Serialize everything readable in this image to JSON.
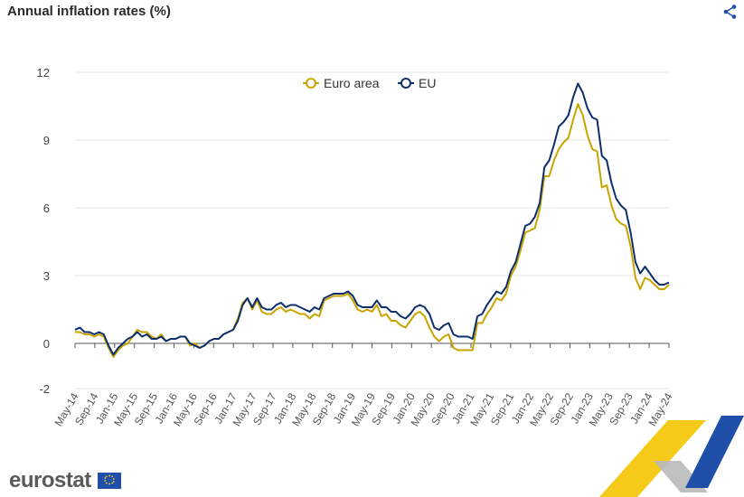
{
  "header": {
    "title": "Annual inflation rates (%)"
  },
  "footer": {
    "brand": "eurostat"
  },
  "chart_data": {
    "type": "line",
    "title": "Annual inflation rates (%)",
    "ylim": [
      -2,
      12
    ],
    "yticks": [
      -2,
      0,
      3,
      6,
      9,
      12
    ],
    "xlabels": [
      "May-14",
      "Sep-14",
      "Jan-15",
      "May-15",
      "Sep-15",
      "Jan-16",
      "May-16",
      "Sep-16",
      "Jan-17",
      "May-17",
      "Sep-17",
      "Jan-18",
      "May-18",
      "Sep-18",
      "Jan-19",
      "May-19",
      "Sep-19",
      "Jan-20",
      "May-20",
      "Sep-20",
      "Jan-21",
      "May-21",
      "Sep-21",
      "Jan-22",
      "May-22",
      "Sep-22",
      "Jan-23",
      "May-23",
      "Sep-23",
      "Jan-24",
      "May-24"
    ],
    "legend_position": "top-center",
    "series": [
      {
        "name": "Euro area",
        "color": "#c9a400",
        "values": [
          0.5,
          0.5,
          0.4,
          0.4,
          0.3,
          0.4,
          0.3,
          -0.2,
          -0.6,
          -0.3,
          -0.1,
          0.0,
          0.3,
          0.6,
          0.5,
          0.5,
          0.3,
          0.2,
          0.4,
          0.1,
          0.2,
          0.2,
          0.3,
          0.3,
          -0.1,
          0.0,
          -0.2,
          -0.1,
          0.1,
          0.2,
          0.2,
          0.4,
          0.5,
          0.6,
          1.1,
          1.8,
          2.0,
          1.5,
          1.9,
          1.4,
          1.3,
          1.3,
          1.5,
          1.6,
          1.4,
          1.5,
          1.4,
          1.3,
          1.3,
          1.1,
          1.3,
          1.2,
          1.9,
          2.0,
          2.1,
          2.1,
          2.1,
          2.2,
          1.9,
          1.5,
          1.4,
          1.5,
          1.4,
          1.7,
          1.2,
          1.3,
          1.0,
          1.0,
          0.8,
          0.7,
          1.0,
          1.3,
          1.4,
          1.2,
          0.7,
          0.3,
          0.1,
          0.3,
          0.4,
          -0.2,
          -0.3,
          -0.3,
          -0.3,
          -0.3,
          0.9,
          0.9,
          1.3,
          1.6,
          2.0,
          1.9,
          2.2,
          3.0,
          3.4,
          4.1,
          4.9,
          5.0,
          5.1,
          5.9,
          7.4,
          7.4,
          8.1,
          8.6,
          8.9,
          9.1,
          9.9,
          10.6,
          10.1,
          9.2,
          8.6,
          8.5,
          6.9,
          7.0,
          6.1,
          5.5,
          5.3,
          5.2,
          4.3,
          2.9,
          2.4,
          2.9,
          2.8,
          2.6,
          2.4,
          2.4,
          2.6
        ],
        "label_x": [
          "May-14",
          "Sep-14",
          "Jan-15",
          "May-15",
          "Sep-15",
          "Jan-16",
          "May-16",
          "Sep-16",
          "Jan-17",
          "May-17",
          "Sep-17",
          "Jan-18",
          "May-18",
          "Sep-18",
          "Jan-19",
          "May-19",
          "Sep-19",
          "Jan-20",
          "May-20",
          "Sep-20",
          "Jan-21",
          "May-21",
          "Sep-21",
          "Jan-22",
          "May-22",
          "Sep-22",
          "Jan-23",
          "May-23",
          "Sep-23",
          "Jan-24",
          "May-24"
        ]
      },
      {
        "name": "EU",
        "color": "#0e2f6e",
        "values": [
          0.6,
          0.7,
          0.5,
          0.5,
          0.4,
          0.5,
          0.4,
          -0.1,
          -0.5,
          -0.2,
          0.0,
          0.2,
          0.3,
          0.5,
          0.3,
          0.4,
          0.2,
          0.2,
          0.3,
          0.1,
          0.2,
          0.2,
          0.3,
          0.3,
          0.0,
          -0.1,
          -0.2,
          -0.1,
          0.1,
          0.2,
          0.2,
          0.4,
          0.5,
          0.6,
          1.0,
          1.7,
          2.0,
          1.6,
          2.0,
          1.6,
          1.5,
          1.5,
          1.7,
          1.8,
          1.6,
          1.7,
          1.7,
          1.6,
          1.5,
          1.4,
          1.6,
          1.5,
          2.0,
          2.1,
          2.2,
          2.2,
          2.2,
          2.3,
          2.1,
          1.7,
          1.6,
          1.6,
          1.6,
          1.9,
          1.6,
          1.6,
          1.4,
          1.4,
          1.2,
          1.1,
          1.3,
          1.6,
          1.7,
          1.6,
          1.3,
          0.7,
          0.6,
          0.8,
          0.9,
          0.4,
          0.3,
          0.3,
          0.3,
          0.2,
          1.2,
          1.3,
          1.7,
          2.0,
          2.3,
          2.2,
          2.5,
          3.2,
          3.6,
          4.4,
          5.2,
          5.3,
          5.6,
          6.2,
          7.8,
          8.1,
          8.8,
          9.6,
          9.8,
          10.1,
          10.9,
          11.5,
          11.1,
          10.4,
          10.0,
          9.9,
          8.3,
          8.1,
          7.1,
          6.4,
          6.1,
          5.9,
          4.9,
          3.6,
          3.1,
          3.4,
          3.1,
          2.8,
          2.6,
          2.6,
          2.7
        ]
      }
    ]
  }
}
